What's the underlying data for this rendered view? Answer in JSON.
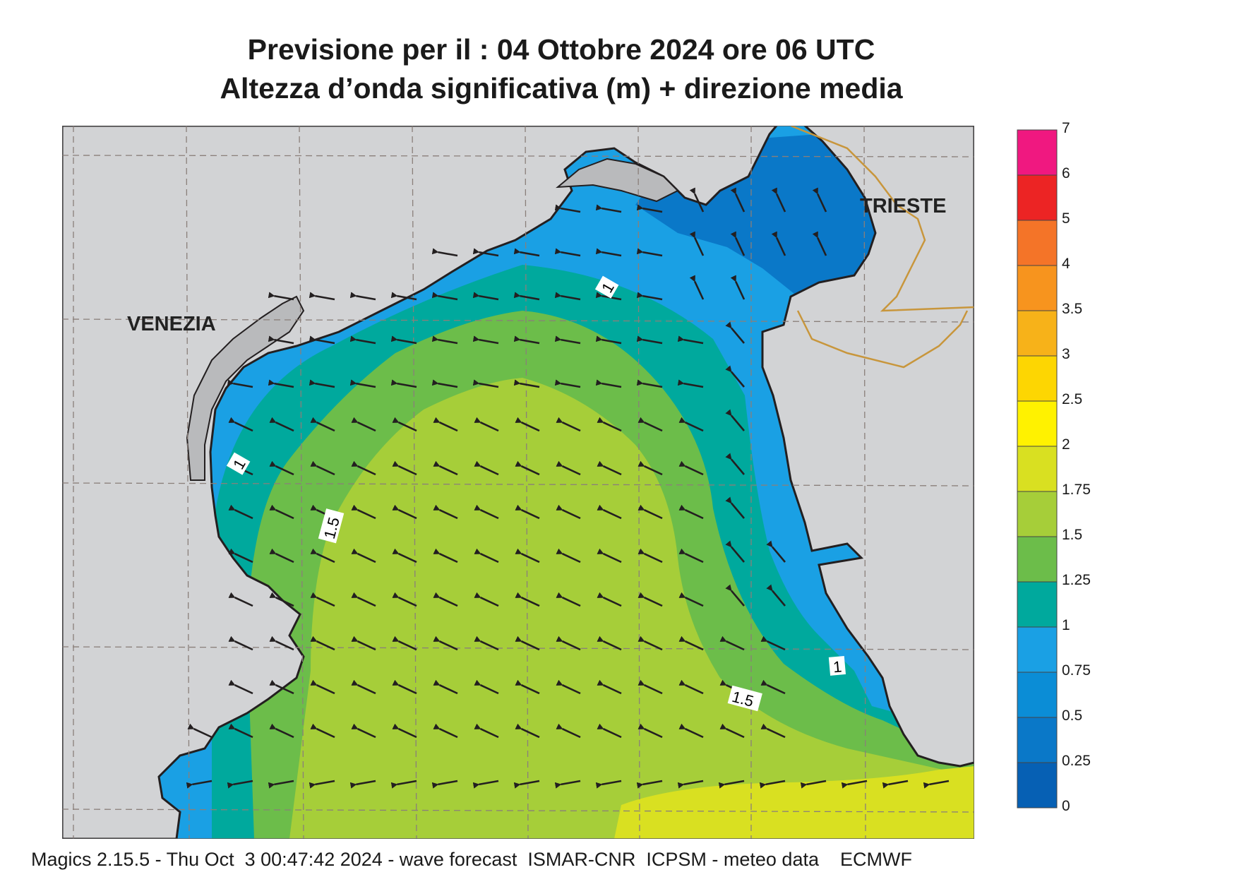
{
  "title": {
    "line1": "Previsione per il  :  04  Ottobre  2024   ore 06 UTC",
    "line2": "Altezza d’onda significativa (m) + direzione media"
  },
  "places": {
    "venezia": "VENEZIA",
    "trieste": "TRIESTE"
  },
  "contour_labels": [
    "1",
    "1",
    "1.5",
    "1",
    "1.5"
  ],
  "colorbar": {
    "ticks": [
      "7",
      "6",
      "5",
      "4",
      "3.5",
      "3",
      "2.5",
      "2",
      "1.75",
      "1.5",
      "1.25",
      "1",
      "0.75",
      "0.5",
      "0.25",
      "0"
    ],
    "colors": [
      "#f01880",
      "#ec2424",
      "#f47428",
      "#f7941e",
      "#f7b219",
      "#fdd602",
      "#fff200",
      "#d9e021",
      "#a6ce39",
      "#6cbd4a",
      "#00a99d",
      "#1aa0e4",
      "#0b8dd6",
      "#0a78c8",
      "#0660b4"
    ]
  },
  "colors": {
    "land": "#d2d3d5",
    "lagoon": "#b9babc",
    "coast": "#231f20",
    "border": "#c8963c",
    "grid": "#8a7f7a",
    "arrow": "#231f20"
  },
  "footer": "Magics 2.15.5 - Thu Oct  3 00:47:42 2024 - wave forecast  ISMAR-CNR  ICPSM - meteo data    ECMWF"
}
